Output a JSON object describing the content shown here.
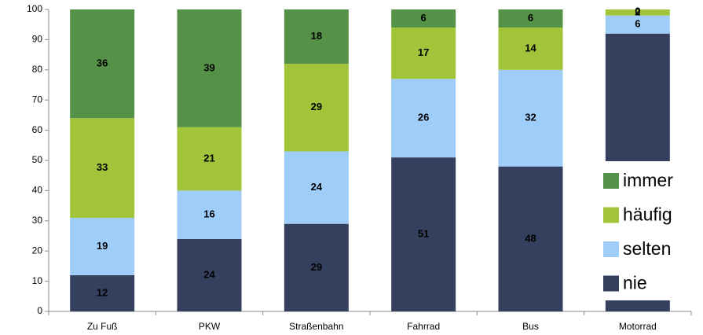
{
  "chart_data": {
    "type": "stacked-bar",
    "categories": [
      "Zu Fuß",
      "PKW",
      "Straßenbahn",
      "Fahrrad",
      "Bus",
      "Motorrad"
    ],
    "series": [
      {
        "name": "nie",
        "color": "#35405f",
        "values": [
          12,
          24,
          29,
          51,
          48,
          92
        ]
      },
      {
        "name": "selten",
        "color": "#9fcdfa",
        "values": [
          19,
          16,
          24,
          26,
          32,
          6
        ]
      },
      {
        "name": "häufig",
        "color": "#a1c43a",
        "values": [
          33,
          21,
          29,
          17,
          14,
          2
        ]
      },
      {
        "name": "immer",
        "color": "#559146",
        "values": [
          36,
          39,
          18,
          6,
          6,
          0
        ]
      }
    ],
    "ylim": [
      0,
      100
    ],
    "yticks": [
      0,
      10,
      20,
      30,
      40,
      50,
      60,
      70,
      80,
      90,
      100
    ],
    "grid": false,
    "legend": "right"
  }
}
